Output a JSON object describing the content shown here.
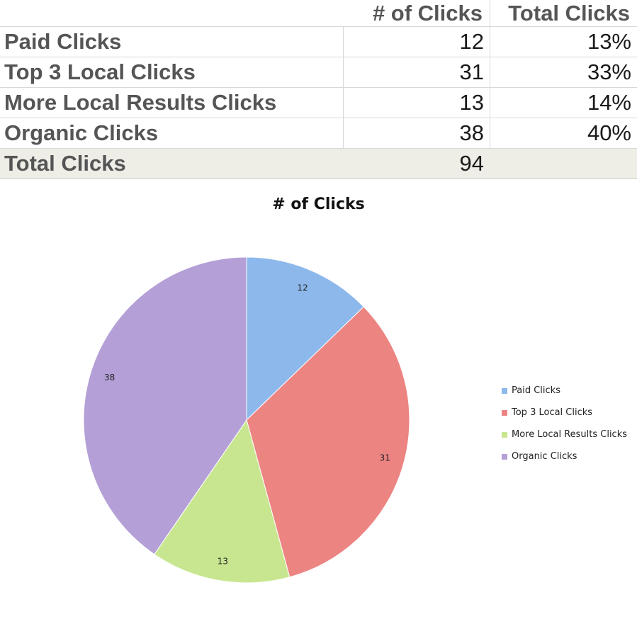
{
  "table": {
    "headers": [
      "",
      "# of Clicks",
      "Total Clicks"
    ],
    "rows": [
      {
        "label": "Paid Clicks",
        "clicks": "12",
        "pct": "13%"
      },
      {
        "label": "Top 3 Local Clicks",
        "clicks": "31",
        "pct": "33%"
      },
      {
        "label": "More Local Results Clicks",
        "clicks": "13",
        "pct": "14%"
      },
      {
        "label": "Organic Clicks",
        "clicks": "38",
        "pct": "40%"
      }
    ],
    "total": {
      "label": "Total Clicks",
      "clicks": "94",
      "pct": ""
    }
  },
  "chart_data": {
    "type": "pie",
    "title": "# of Clicks",
    "categories": [
      "Paid Clicks",
      "Top 3 Local Clicks",
      "More Local Results Clicks",
      "Organic Clicks"
    ],
    "values": [
      12,
      31,
      13,
      38
    ],
    "colors": [
      "#8db8ec",
      "#ec8482",
      "#c8e690",
      "#b49fd6"
    ],
    "legend_position": "right"
  }
}
